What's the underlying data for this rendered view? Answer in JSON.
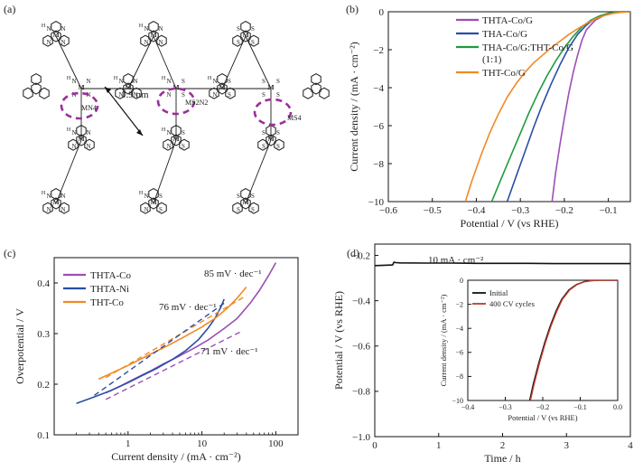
{
  "panels": {
    "a": {
      "label": "(a)",
      "scale_text": "1.9 nm",
      "site_labels": [
        "MN4",
        "MS2N2",
        "MS4"
      ],
      "atoms": {
        "n": "N",
        "h": "H",
        "s": "S",
        "m": "M"
      }
    }
  },
  "chart_data": [
    {
      "id": "b",
      "panel_label": "(b)",
      "type": "line",
      "xlabel": "Potential / V (vs RHE)",
      "ylabel": "Current density / (mA · cm⁻²)",
      "xlim": [
        -0.6,
        -0.05
      ],
      "ylim": [
        -10,
        0
      ],
      "xticks": [
        -0.6,
        -0.5,
        -0.4,
        -0.3,
        -0.2,
        -0.1
      ],
      "yticks": [
        0,
        -2,
        -4,
        -6,
        -8,
        -10
      ],
      "legend_position": "top-right",
      "legend_line2": "(1:1)",
      "series": [
        {
          "name": "THTA-Co/G",
          "color": "#9b4fb4",
          "x": [
            -0.228,
            -0.22,
            -0.21,
            -0.2,
            -0.19,
            -0.18,
            -0.17,
            -0.16,
            -0.15,
            -0.13,
            -0.11,
            -0.09,
            -0.07,
            -0.05
          ],
          "y": [
            -10,
            -8.5,
            -7.0,
            -5.6,
            -4.3,
            -3.2,
            -2.3,
            -1.5,
            -0.95,
            -0.45,
            -0.2,
            -0.08,
            -0.02,
            0
          ]
        },
        {
          "name": "THA-Co/G",
          "color": "#2a4ea6",
          "x": [
            -0.33,
            -0.31,
            -0.29,
            -0.27,
            -0.25,
            -0.23,
            -0.21,
            -0.19,
            -0.17,
            -0.15,
            -0.13,
            -0.11,
            -0.09,
            -0.07,
            -0.05
          ],
          "y": [
            -10,
            -8.7,
            -7.4,
            -6.1,
            -4.9,
            -3.8,
            -2.8,
            -1.9,
            -1.2,
            -0.7,
            -0.35,
            -0.15,
            -0.05,
            -0.01,
            0
          ]
        },
        {
          "name": "THA-Co/G:THT-Co/G",
          "color": "#1f9a3c",
          "x": [
            -0.365,
            -0.34,
            -0.32,
            -0.3,
            -0.28,
            -0.26,
            -0.24,
            -0.22,
            -0.2,
            -0.18,
            -0.16,
            -0.14,
            -0.12,
            -0.1,
            -0.08,
            -0.05
          ],
          "y": [
            -10,
            -8.6,
            -7.5,
            -6.4,
            -5.3,
            -4.3,
            -3.4,
            -2.6,
            -1.9,
            -1.3,
            -0.8,
            -0.45,
            -0.22,
            -0.08,
            -0.02,
            0
          ]
        },
        {
          "name": "THT-Co/G",
          "color": "#f08a24",
          "x": [
            -0.425,
            -0.41,
            -0.39,
            -0.37,
            -0.35,
            -0.33,
            -0.31,
            -0.29,
            -0.27,
            -0.25,
            -0.23,
            -0.21,
            -0.19,
            -0.17,
            -0.15,
            -0.13,
            -0.11,
            -0.09,
            -0.07,
            -0.05
          ],
          "y": [
            -10,
            -8.9,
            -7.6,
            -6.4,
            -5.4,
            -4.5,
            -3.8,
            -3.2,
            -2.7,
            -2.3,
            -1.9,
            -1.55,
            -1.2,
            -0.9,
            -0.62,
            -0.38,
            -0.2,
            -0.08,
            -0.02,
            0
          ]
        }
      ]
    },
    {
      "id": "c",
      "panel_label": "(c)",
      "type": "line",
      "xscale": "log",
      "xlabel": "Current density / (mA · cm⁻²)",
      "ylabel": "Overpotential / V",
      "xlim": [
        0.1,
        200
      ],
      "ylim": [
        0.1,
        0.45
      ],
      "xticks": [
        1,
        10,
        100
      ],
      "yticks": [
        0.1,
        0.2,
        0.3,
        0.4
      ],
      "legend_position": "top-left",
      "series": [
        {
          "name": "THTA-Co",
          "color": "#9b4fb4",
          "x": [
            0.5,
            0.8,
            1.2,
            2,
            3,
            5,
            8,
            12,
            20,
            30,
            45,
            60,
            80,
            100
          ],
          "y": [
            0.183,
            0.197,
            0.21,
            0.226,
            0.24,
            0.256,
            0.272,
            0.287,
            0.31,
            0.33,
            0.36,
            0.385,
            0.415,
            0.44
          ]
        },
        {
          "name": "THTA-Ni",
          "color": "#2a4ea6",
          "x": [
            0.2,
            0.35,
            0.6,
            1,
            1.5,
            2.5,
            4,
            6,
            9,
            12,
            15,
            18,
            20
          ],
          "y": [
            0.162,
            0.175,
            0.188,
            0.203,
            0.216,
            0.232,
            0.249,
            0.266,
            0.288,
            0.31,
            0.33,
            0.352,
            0.368
          ]
        },
        {
          "name": "THT-Co",
          "color": "#f08a24",
          "x": [
            0.4,
            0.6,
            1,
            1.5,
            2.5,
            4,
            6,
            10,
            15,
            22,
            30,
            40
          ],
          "y": [
            0.21,
            0.222,
            0.237,
            0.25,
            0.266,
            0.281,
            0.295,
            0.313,
            0.33,
            0.35,
            0.37,
            0.392
          ]
        }
      ],
      "fits": [
        {
          "label": "85 mV · dec⁻¹",
          "color": "#f08a24",
          "x": [
            0.5,
            40
          ],
          "y": [
            0.213,
            0.375
          ]
        },
        {
          "label": "76 mV · dec⁻¹",
          "color": "#2a4ea6",
          "x": [
            0.35,
            20
          ],
          "y": [
            0.178,
            0.36
          ]
        },
        {
          "label": "71 mV · dec⁻¹",
          "color": "#9b4fb4",
          "x": [
            0.5,
            35
          ],
          "y": [
            0.17,
            0.305
          ]
        }
      ]
    },
    {
      "id": "d",
      "panel_label": "(d)",
      "type": "line",
      "xlabel": "Time / h",
      "ylabel": "Potential / V (vs RHE)",
      "xlim": [
        0,
        4
      ],
      "ylim": [
        -1.0,
        -0.15
      ],
      "xticks": [
        0,
        1,
        2,
        3,
        4
      ],
      "yticks": [
        -0.2,
        -0.4,
        -0.6,
        -0.8,
        -1.0
      ],
      "annotation": "10 mA · cm⁻²",
      "series": [
        {
          "name": "",
          "color": "#111111",
          "x": [
            0,
            0.1,
            0.2,
            0.28,
            0.3,
            0.33,
            0.4,
            0.8,
            1.2,
            1.6,
            2.0,
            2.4,
            2.8,
            3.2,
            3.6,
            4.0
          ],
          "y": [
            -0.245,
            -0.244,
            -0.243,
            -0.242,
            -0.23,
            -0.232,
            -0.233,
            -0.234,
            -0.234,
            -0.235,
            -0.235,
            -0.235,
            -0.236,
            -0.236,
            -0.236,
            -0.236
          ]
        }
      ],
      "inset": {
        "type": "line",
        "xlabel": "Potential / V (vs RHE)",
        "ylabel": "Current density / (mA · cm⁻²)",
        "xlim": [
          -0.4,
          0.0
        ],
        "ylim": [
          -10,
          0
        ],
        "xticks": [
          -0.4,
          -0.3,
          -0.2,
          -0.1,
          0.0
        ],
        "yticks": [
          0,
          -2,
          -4,
          -6,
          -8,
          -10
        ],
        "legend_position": "top-left",
        "series": [
          {
            "name": "Initial",
            "color": "#111111",
            "x": [
              -0.235,
              -0.225,
              -0.21,
              -0.195,
              -0.18,
              -0.165,
              -0.15,
              -0.13,
              -0.11,
              -0.09,
              -0.07,
              -0.05,
              0.0
            ],
            "y": [
              -10,
              -8.6,
              -6.8,
              -5.2,
              -3.8,
              -2.6,
              -1.6,
              -0.8,
              -0.35,
              -0.12,
              -0.03,
              0,
              0
            ]
          },
          {
            "name": "400 CV cycles",
            "color": "#c0392b",
            "x": [
              -0.233,
              -0.223,
              -0.208,
              -0.193,
              -0.178,
              -0.163,
              -0.148,
              -0.128,
              -0.108,
              -0.088,
              -0.068,
              -0.05,
              0.0
            ],
            "y": [
              -10,
              -8.6,
              -6.8,
              -5.2,
              -3.8,
              -2.6,
              -1.6,
              -0.8,
              -0.35,
              -0.12,
              -0.03,
              0,
              0
            ]
          }
        ]
      }
    }
  ]
}
